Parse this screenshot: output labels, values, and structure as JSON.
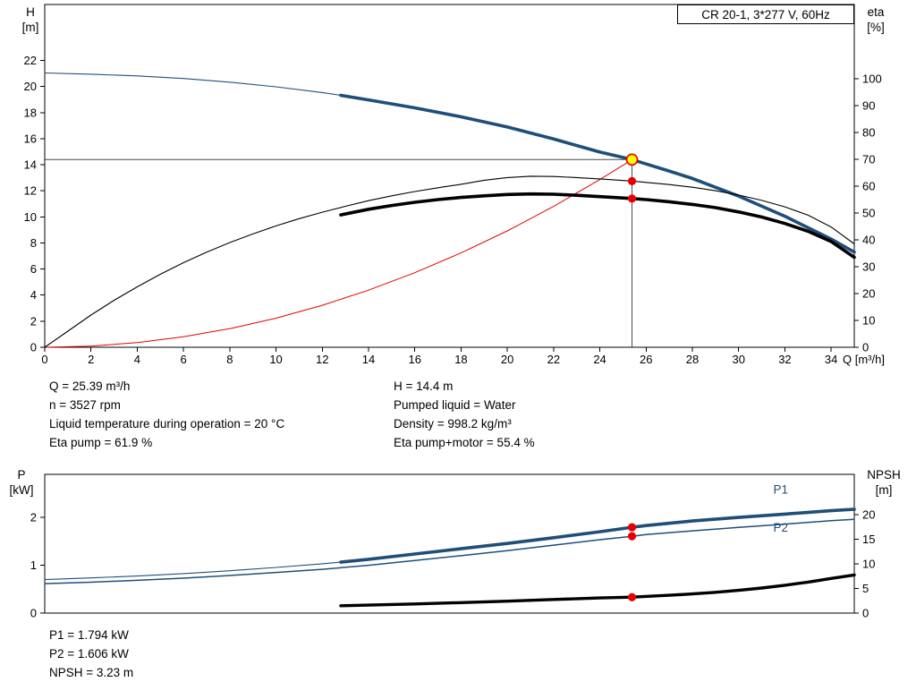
{
  "title_box": {
    "label": "CR 20-1, 3*277 V, 60Hz"
  },
  "info_block": {
    "left": [
      "Q = 25.39 m³/h",
      "n = 3527 rpm",
      "Liquid temperature during operation = 20 °C",
      "Eta pump = 61.9 %"
    ],
    "right": [
      "H = 14.4 m",
      "Pumped liquid = Water",
      "Density = 998.2 kg/m³",
      "Eta pump+motor = 55.4 %"
    ]
  },
  "results_block": [
    "P1 = 1.794 kW",
    "P2 = 1.606 kW",
    "NPSH = 3.23 m"
  ],
  "colors": {
    "curve_blue": "#1f4e79",
    "curve_black": "#000000",
    "curve_red": "#e60000",
    "duty_point_fill": "#ffff00",
    "crosshair_gray": "#4a4a4a"
  },
  "duty_point": {
    "Q": 25.39,
    "H": 14.4,
    "eta_pump": 61.9,
    "eta_pump_motor": 55.4,
    "P1": 1.794,
    "P2": 1.606,
    "NPSH": 3.23
  },
  "chart_data": [
    {
      "type": "line",
      "title": "Pump head / efficiency vs flow",
      "axes": {
        "x": {
          "label": "Q [m³/h]",
          "min": 0,
          "max": 35,
          "ticks": [
            0,
            2,
            4,
            6,
            8,
            10,
            12,
            14,
            16,
            18,
            20,
            22,
            24,
            26,
            28,
            30,
            32,
            34
          ]
        },
        "left": {
          "label": "H",
          "unit": "[m]",
          "ticks": [
            0,
            2,
            4,
            6,
            8,
            10,
            12,
            14,
            16,
            18,
            20,
            22
          ],
          "plot_max": 26.3
        },
        "right": {
          "label": "eta",
          "unit": "[%]",
          "ticks": [
            0,
            10,
            20,
            30,
            40,
            50,
            60,
            70,
            80,
            90,
            100
          ],
          "plot_max": 127.7
        }
      },
      "grid": false,
      "crosshair": {
        "x": 25.39,
        "y": 14.4,
        "axis": "left",
        "color": "#4a4a4a"
      },
      "series": [
        {
          "name": "system-curve",
          "axis": "left",
          "color": "#e60000",
          "width": 1,
          "points": [
            [
              0,
              0
            ],
            [
              2,
              0.09
            ],
            [
              4,
              0.36
            ],
            [
              6,
              0.8
            ],
            [
              8,
              1.43
            ],
            [
              10,
              2.23
            ],
            [
              12,
              3.22
            ],
            [
              14,
              4.38
            ],
            [
              16,
              5.72
            ],
            [
              18,
              7.24
            ],
            [
              20,
              8.93
            ],
            [
              22,
              10.81
            ],
            [
              24,
              12.87
            ],
            [
              25,
              13.96
            ],
            [
              25.39,
              14.4
            ]
          ]
        },
        {
          "name": "head-curve-low-flow",
          "axis": "left",
          "color": "#1f4e79",
          "width": 1.1,
          "points": [
            [
              0,
              21.05
            ],
            [
              2,
              20.95
            ],
            [
              4,
              20.82
            ],
            [
              6,
              20.62
            ],
            [
              8,
              20.34
            ],
            [
              10,
              19.98
            ],
            [
              12,
              19.54
            ],
            [
              12.8,
              19.33
            ]
          ]
        },
        {
          "name": "head-curve",
          "axis": "left",
          "color": "#1f4e79",
          "width": 3.6,
          "points": [
            [
              12.8,
              19.33
            ],
            [
              14,
              18.98
            ],
            [
              16,
              18.37
            ],
            [
              18,
              17.68
            ],
            [
              20,
              16.9
            ],
            [
              22,
              15.98
            ],
            [
              24,
              14.98
            ],
            [
              25.39,
              14.4
            ],
            [
              27,
              13.52
            ],
            [
              28,
              12.95
            ],
            [
              30,
              11.6
            ],
            [
              32,
              10.05
            ],
            [
              34,
              8.3
            ],
            [
              35,
              7.3
            ]
          ]
        },
        {
          "name": "eta-pump-curve",
          "axis": "right",
          "color": "#000000",
          "width": 1.1,
          "points": [
            [
              0,
              0
            ],
            [
              1,
              6
            ],
            [
              2,
              12
            ],
            [
              3,
              17.5
            ],
            [
              4,
              22.5
            ],
            [
              5,
              27.2
            ],
            [
              6,
              31.5
            ],
            [
              7,
              35.4
            ],
            [
              8,
              39
            ],
            [
              9,
              42.2
            ],
            [
              10,
              45.2
            ],
            [
              11,
              47.9
            ],
            [
              12,
              50.3
            ],
            [
              13,
              52.5
            ],
            [
              14,
              54.6
            ],
            [
              15,
              56.4
            ],
            [
              16,
              58
            ],
            [
              17,
              59.4
            ],
            [
              18,
              60.7
            ],
            [
              19,
              62.2
            ],
            [
              20,
              63.2
            ],
            [
              21,
              63.7
            ],
            [
              22,
              63.6
            ],
            [
              23,
              63.2
            ],
            [
              24,
              62.7
            ],
            [
              25.39,
              61.9
            ],
            [
              26,
              61.4
            ],
            [
              27,
              60.6
            ],
            [
              28,
              59.6
            ],
            [
              29,
              58.3
            ],
            [
              30,
              56.7
            ],
            [
              31,
              54.7
            ],
            [
              32,
              52.3
            ],
            [
              33,
              49.2
            ],
            [
              34,
              44.8
            ],
            [
              35,
              38.5
            ]
          ]
        },
        {
          "name": "eta-pump-motor-curve",
          "axis": "right",
          "color": "#000000",
          "width": 3.6,
          "points": [
            [
              12.8,
              49.3
            ],
            [
              14,
              51.4
            ],
            [
              15,
              52.8
            ],
            [
              16,
              54
            ],
            [
              17,
              55
            ],
            [
              18,
              55.8
            ],
            [
              19,
              56.4
            ],
            [
              20,
              56.9
            ],
            [
              21,
              57.1
            ],
            [
              22,
              57.0
            ],
            [
              23,
              56.6
            ],
            [
              24,
              56.1
            ],
            [
              25.39,
              55.4
            ],
            [
              26,
              55
            ],
            [
              27,
              54.2
            ],
            [
              28,
              53.2
            ],
            [
              29,
              52
            ],
            [
              30,
              50.4
            ],
            [
              31,
              48.5
            ],
            [
              32,
              46.1
            ],
            [
              33,
              43.2
            ],
            [
              34,
              39.4
            ],
            [
              35,
              33.5
            ]
          ]
        }
      ],
      "markers": [
        {
          "name": "duty-point",
          "x": 25.39,
          "y": 14.4,
          "axis": "left",
          "fill": "#ffff00",
          "stroke": "#e60000",
          "stroke_width": 1.6,
          "r": 6
        },
        {
          "name": "eta-pump-point",
          "x": 25.39,
          "y": 61.9,
          "axis": "right",
          "fill": "#e60000",
          "stroke": "none",
          "r": 4.6
        },
        {
          "name": "eta-pump-motor-point",
          "x": 25.39,
          "y": 55.4,
          "axis": "right",
          "fill": "#e60000",
          "stroke": "none",
          "r": 4.6
        }
      ],
      "labels": []
    },
    {
      "type": "line",
      "title": "Power / NPSH vs flow",
      "axes": {
        "x": {
          "label": "",
          "min": 0,
          "max": 35,
          "ticks": []
        },
        "left": {
          "label": "P",
          "unit": "[kW]",
          "ticks": [
            0,
            1,
            2
          ],
          "plot_max": 2.9
        },
        "right": {
          "label": "NPSH",
          "unit": "[m]",
          "ticks": [
            0,
            5,
            10,
            15,
            20
          ],
          "plot_max": 28.2
        }
      },
      "grid": false,
      "crosshair": null,
      "series": [
        {
          "name": "p1-curve-low-flow",
          "axis": "left",
          "color": "#1f4e79",
          "width": 1.1,
          "points": [
            [
              0,
              0.7
            ],
            [
              2,
              0.735
            ],
            [
              4,
              0.775
            ],
            [
              6,
              0.825
            ],
            [
              8,
              0.885
            ],
            [
              10,
              0.955
            ],
            [
              12,
              1.03
            ],
            [
              12.8,
              1.065
            ]
          ]
        },
        {
          "name": "p1-curve",
          "axis": "left",
          "color": "#1f4e79",
          "width": 3.6,
          "points": [
            [
              12.8,
              1.065
            ],
            [
              14,
              1.125
            ],
            [
              16,
              1.235
            ],
            [
              18,
              1.345
            ],
            [
              20,
              1.455
            ],
            [
              22,
              1.575
            ],
            [
              24,
              1.7
            ],
            [
              25.39,
              1.794
            ],
            [
              26,
              1.83
            ],
            [
              28,
              1.925
            ],
            [
              30,
              2.0
            ],
            [
              32,
              2.07
            ],
            [
              34,
              2.14
            ],
            [
              35,
              2.17
            ]
          ]
        },
        {
          "name": "p2-curve",
          "axis": "left",
          "color": "#1f4e79",
          "width": 1.5,
          "points": [
            [
              0,
              0.615
            ],
            [
              2,
              0.645
            ],
            [
              4,
              0.685
            ],
            [
              6,
              0.73
            ],
            [
              8,
              0.785
            ],
            [
              10,
              0.85
            ],
            [
              12,
              0.915
            ],
            [
              14,
              1.0
            ],
            [
              16,
              1.1
            ],
            [
              18,
              1.2
            ],
            [
              20,
              1.305
            ],
            [
              22,
              1.42
            ],
            [
              24,
              1.535
            ],
            [
              25.39,
              1.606
            ],
            [
              26,
              1.64
            ],
            [
              28,
              1.72
            ],
            [
              30,
              1.79
            ],
            [
              32,
              1.86
            ],
            [
              34,
              1.93
            ],
            [
              35,
              1.96
            ]
          ]
        },
        {
          "name": "npsh-curve",
          "axis": "right",
          "color": "#000000",
          "width": 3.4,
          "points": [
            [
              12.8,
              1.5
            ],
            [
              14,
              1.62
            ],
            [
              16,
              1.85
            ],
            [
              18,
              2.12
            ],
            [
              20,
              2.42
            ],
            [
              22,
              2.76
            ],
            [
              24,
              3.07
            ],
            [
              25.39,
              3.23
            ],
            [
              27,
              3.62
            ],
            [
              28,
              3.9
            ],
            [
              29,
              4.22
            ],
            [
              30,
              4.62
            ],
            [
              31,
              5.1
            ],
            [
              32,
              5.65
            ],
            [
              33,
              6.3
            ],
            [
              34,
              7.05
            ],
            [
              35,
              7.75
            ]
          ]
        }
      ],
      "markers": [
        {
          "name": "p1-point",
          "x": 25.39,
          "y": 1.794,
          "axis": "left",
          "fill": "#e60000",
          "stroke": "none",
          "r": 4.6
        },
        {
          "name": "p2-point",
          "x": 25.39,
          "y": 1.606,
          "axis": "left",
          "fill": "#e60000",
          "stroke": "none",
          "r": 4.6
        },
        {
          "name": "npsh-point",
          "x": 25.39,
          "y": 3.23,
          "axis": "right",
          "fill": "#e60000",
          "stroke": "none",
          "r": 4.6
        }
      ],
      "labels": [
        {
          "text": "P1",
          "x": 31.5,
          "y": 2.5,
          "axis": "left",
          "color": "#1f4e79"
        },
        {
          "text": "P2",
          "x": 31.5,
          "y": 1.7,
          "axis": "left",
          "color": "#1f4e79"
        }
      ]
    }
  ]
}
